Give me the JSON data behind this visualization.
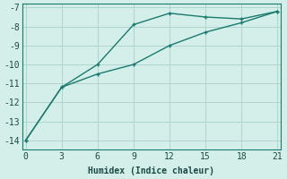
{
  "line1_x": [
    0,
    3,
    6,
    9,
    12,
    15,
    18,
    21
  ],
  "line1_y": [
    -14.0,
    -11.2,
    -10.0,
    -7.9,
    -7.3,
    -7.5,
    -7.6,
    -7.2
  ],
  "line2_x": [
    0,
    3,
    6,
    9,
    12,
    15,
    18,
    21
  ],
  "line2_y": [
    -14.0,
    -11.2,
    -10.5,
    -10.0,
    -9.0,
    -8.3,
    -7.8,
    -7.2
  ],
  "line_color": "#1a7a6e",
  "bg_color": "#d4eeea",
  "grid_color": "#afd4ce",
  "xlabel": "Humidex (Indice chaleur)",
  "ylim": [
    -14.5,
    -6.8
  ],
  "xlim": [
    -0.3,
    21.3
  ],
  "yticks": [
    -14,
    -13,
    -12,
    -11,
    -10,
    -9,
    -8,
    -7
  ],
  "xticks": [
    0,
    3,
    6,
    9,
    12,
    15,
    18,
    21
  ],
  "xlabel_fontsize": 7,
  "tick_fontsize": 7,
  "markersize": 3,
  "linewidth": 1.0
}
